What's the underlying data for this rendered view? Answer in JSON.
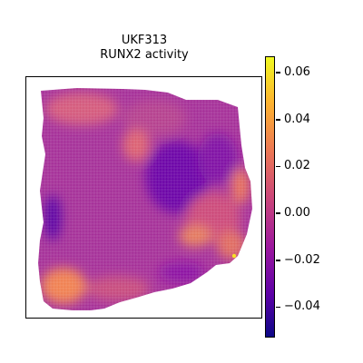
{
  "chart_data": {
    "type": "heatmap",
    "title": "UKF313",
    "subtitle": "RUNX2 activity",
    "colormap": "plasma",
    "colorbar": {
      "min": -0.053,
      "max": 0.067,
      "ticks": [
        {
          "value": 0.06,
          "label": "0.06"
        },
        {
          "value": 0.04,
          "label": "0.04"
        },
        {
          "value": 0.02,
          "label": "0.02"
        },
        {
          "value": 0.0,
          "label": "0.00"
        },
        {
          "value": -0.02,
          "label": "−0.02"
        },
        {
          "value": -0.04,
          "label": "−0.04"
        }
      ]
    },
    "grid": false,
    "legend": "right"
  }
}
